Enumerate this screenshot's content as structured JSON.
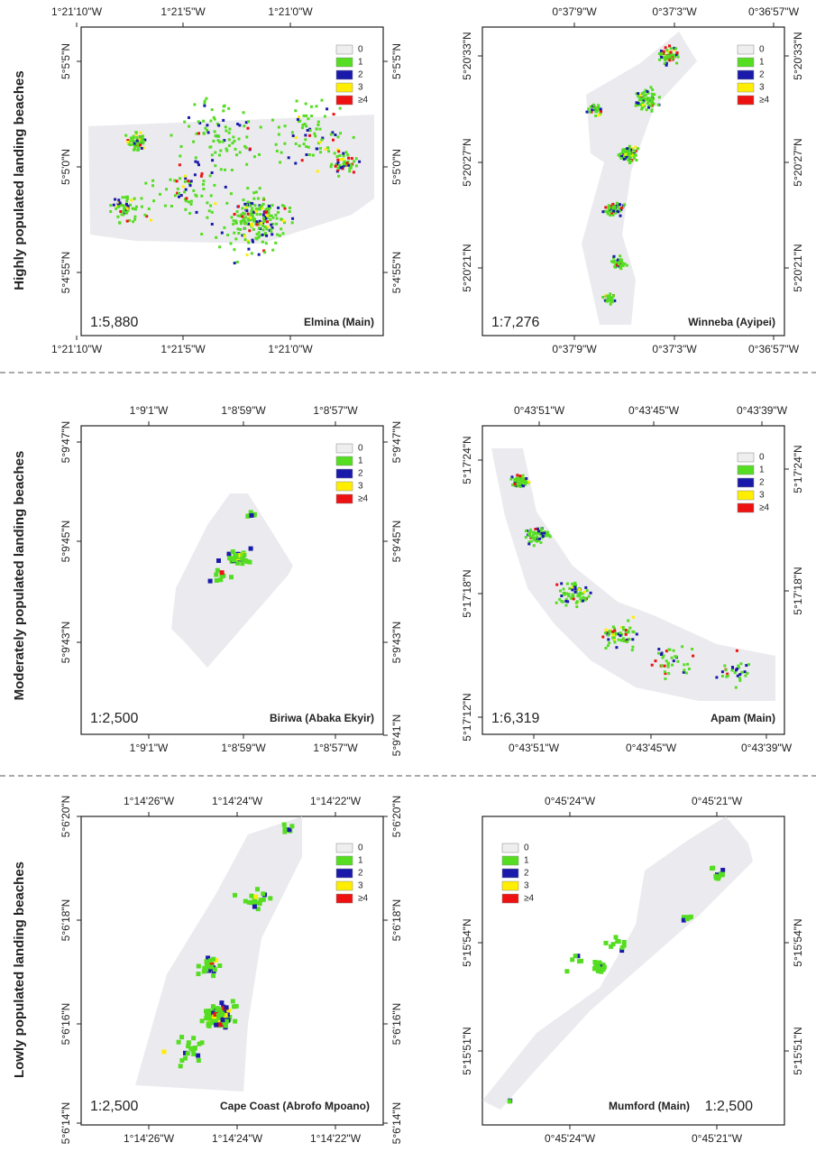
{
  "row_labels": [
    "Highly populated landing beaches",
    "Moderately populated landing beaches",
    "Lowly populated landing beaches"
  ],
  "legend": {
    "labels": [
      "0",
      "1",
      "2",
      "3",
      "≥4"
    ],
    "colors": [
      "#eeeeee",
      "#55dd22",
      "#1a1aaa",
      "#ffee00",
      "#ee1111"
    ]
  },
  "panels": [
    {
      "name": "Elmina (Main)",
      "scale": "1:5,880",
      "ticks": {
        "top": [
          "1°21'10\"W",
          "1°21'5\"W",
          "1°21'0\"W"
        ],
        "bottom": [
          "1°21'10\"W",
          "1°21'5\"W",
          "1°21'0\"W"
        ],
        "left": [
          "5°5'5\"N",
          "5°5'0\"N",
          "5°4'55\"N"
        ],
        "right": [
          "5°5'5\"N",
          "5°5'0\"N",
          "5°4'55\"N"
        ]
      }
    },
    {
      "name": "Winneba (Ayipei)",
      "scale": "1:7,276",
      "ticks": {
        "top": [
          "0°37'9\"W",
          "0°37'3\"W",
          "0°36'57\"W"
        ],
        "bottom": [
          "0°37'9\"W",
          "0°37'3\"W",
          "0°36'57\"W"
        ],
        "left": [
          "5°20'33\"N",
          "5°20'27\"N",
          "5°20'21\"N"
        ],
        "right": [
          "5°20'33\"N",
          "5°20'27\"N",
          "5°20'21\"N"
        ]
      }
    },
    {
      "name": "Biriwa (Abaka Ekyir)",
      "scale": "1:2,500",
      "ticks": {
        "top": [
          "1°9'1\"W",
          "1°8'59\"W",
          "1°8'57\"W"
        ],
        "bottom": [
          "1°9'1\"W",
          "1°8'59\"W",
          "1°8'57\"W"
        ],
        "left": [
          "5°9'47\"N",
          "5°9'45\"N",
          "5°9'43\"N"
        ],
        "right": [
          "5°9'47\"N",
          "5°9'45\"N",
          "5°9'43\"N",
          "5°9'41\"N"
        ]
      }
    },
    {
      "name": "Apam (Main)",
      "scale": "1:6,319",
      "ticks": {
        "top": [
          "0°43'51\"W",
          "0°43'45\"W",
          "0°43'39\"W"
        ],
        "bottom": [
          "0°43'51\"W",
          "0°43'45\"W",
          "0°43'39\"W"
        ],
        "left": [
          "5°17'24\"N",
          "5°17'18\"N",
          "5°17'12\"N"
        ],
        "right": [
          "5°17'24\"N",
          "5°17'18\"N"
        ]
      }
    },
    {
      "name": "Cape Coast (Abrofo Mpoano)",
      "scale": "1:2,500",
      "ticks": {
        "top": [
          "1°14'26\"W",
          "1°14'24\"W",
          "1°14'22\"W"
        ],
        "bottom": [
          "1°14'26\"W",
          "1°14'24\"W",
          "1°14'22\"W"
        ],
        "left": [
          "5°6'20\"N",
          "5°6'18\"N",
          "5°6'16\"N",
          "5°6'14\"N"
        ],
        "right": [
          "5°6'20\"N",
          "5°6'18\"N",
          "5°6'16\"N",
          "5°6'14\"N"
        ]
      }
    },
    {
      "name": "Mumford (Main)",
      "scale": "1:2,500",
      "ticks": {
        "top": [
          "0°45'24\"W",
          "0°45'21\"W"
        ],
        "bottom": [
          "0°45'24\"W",
          "0°45'21\"W"
        ],
        "left": [
          "5°15'54\"N",
          "5°15'51\"N"
        ],
        "right": [
          "5°15'54\"N",
          "5°15'51\"N"
        ]
      }
    }
  ]
}
